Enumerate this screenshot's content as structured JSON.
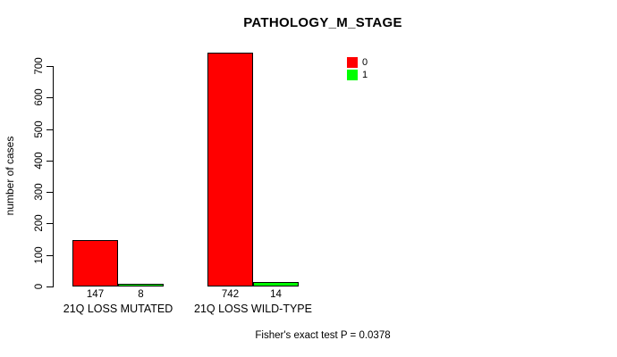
{
  "chart_data": {
    "type": "bar",
    "title": "PATHOLOGY_M_STAGE",
    "ylabel": "number of cases",
    "xlabel": "",
    "ylim": [
      0,
      700
    ],
    "yticks": [
      0,
      100,
      200,
      300,
      400,
      500,
      600,
      700
    ],
    "categories": [
      "21Q LOSS MUTATED",
      "21Q LOSS WILD-TYPE"
    ],
    "series": [
      {
        "name": "0",
        "color": "#ff0000",
        "values": [
          147,
          742
        ]
      },
      {
        "name": "1",
        "color": "#00ff00",
        "values": [
          8,
          14
        ]
      }
    ],
    "grid": false,
    "legend_position": "top-right",
    "footer": "Fisher's exact test P = 0.0378"
  }
}
